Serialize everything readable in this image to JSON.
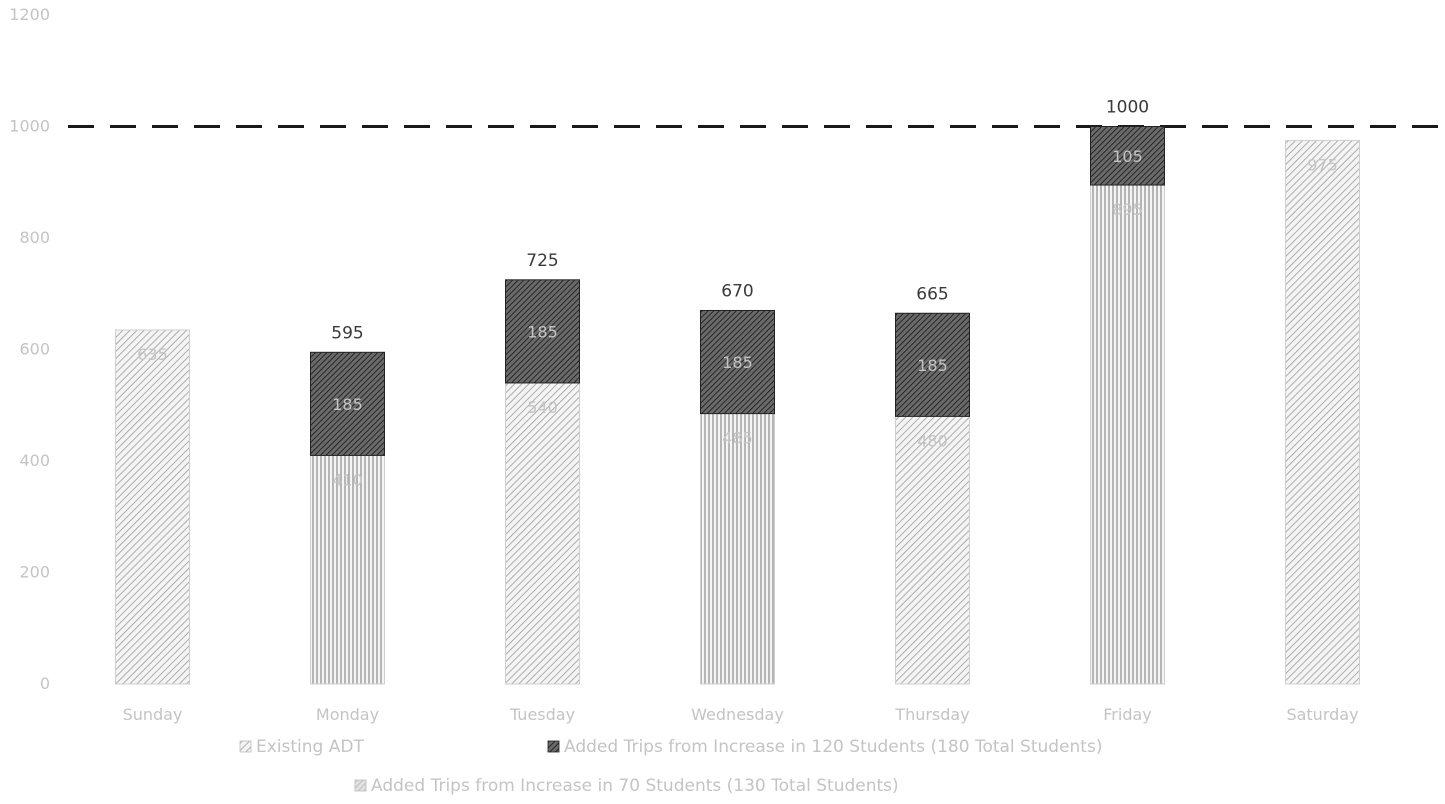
{
  "chart_data": {
    "type": "bar",
    "stacked": true,
    "categories": [
      "Sunday",
      "Monday",
      "Tuesday",
      "Wednesday",
      "Thursday",
      "Friday",
      "Saturday"
    ],
    "series": [
      {
        "name": "Existing ADT",
        "values": [
          635,
          410,
          540,
          485,
          480,
          895,
          975
        ],
        "color": "#bdbdbd"
      },
      {
        "name": "Added Trips from Increase in 120 Students (180 Total Students)",
        "values": [
          0,
          185,
          185,
          185,
          185,
          105,
          0
        ],
        "color": "#4a4a4a"
      },
      {
        "name": "Added Trips from Increase in 70 Students (130 Total Students)",
        "values": [
          0,
          0,
          0,
          0,
          0,
          0,
          0
        ],
        "color": "#d6d6d6"
      }
    ],
    "segment_labels": {
      "Existing ADT": [
        "635",
        "410",
        "540",
        "485",
        "480",
        "895",
        "975"
      ],
      "Added Trips from Increase in 120 Students (180 Total Students)": [
        "",
        "185",
        "185",
        "185",
        "185",
        "105",
        ""
      ]
    },
    "totals": [
      "",
      "595",
      "725",
      "670",
      "665",
      "1000",
      ""
    ],
    "ylim": [
      0,
      1200
    ],
    "yticks": [
      "0",
      "200",
      "400",
      "600",
      "800",
      "1000",
      "1200"
    ],
    "threshold": {
      "value": 1000
    },
    "grid": false,
    "legend_position": "bottom"
  }
}
